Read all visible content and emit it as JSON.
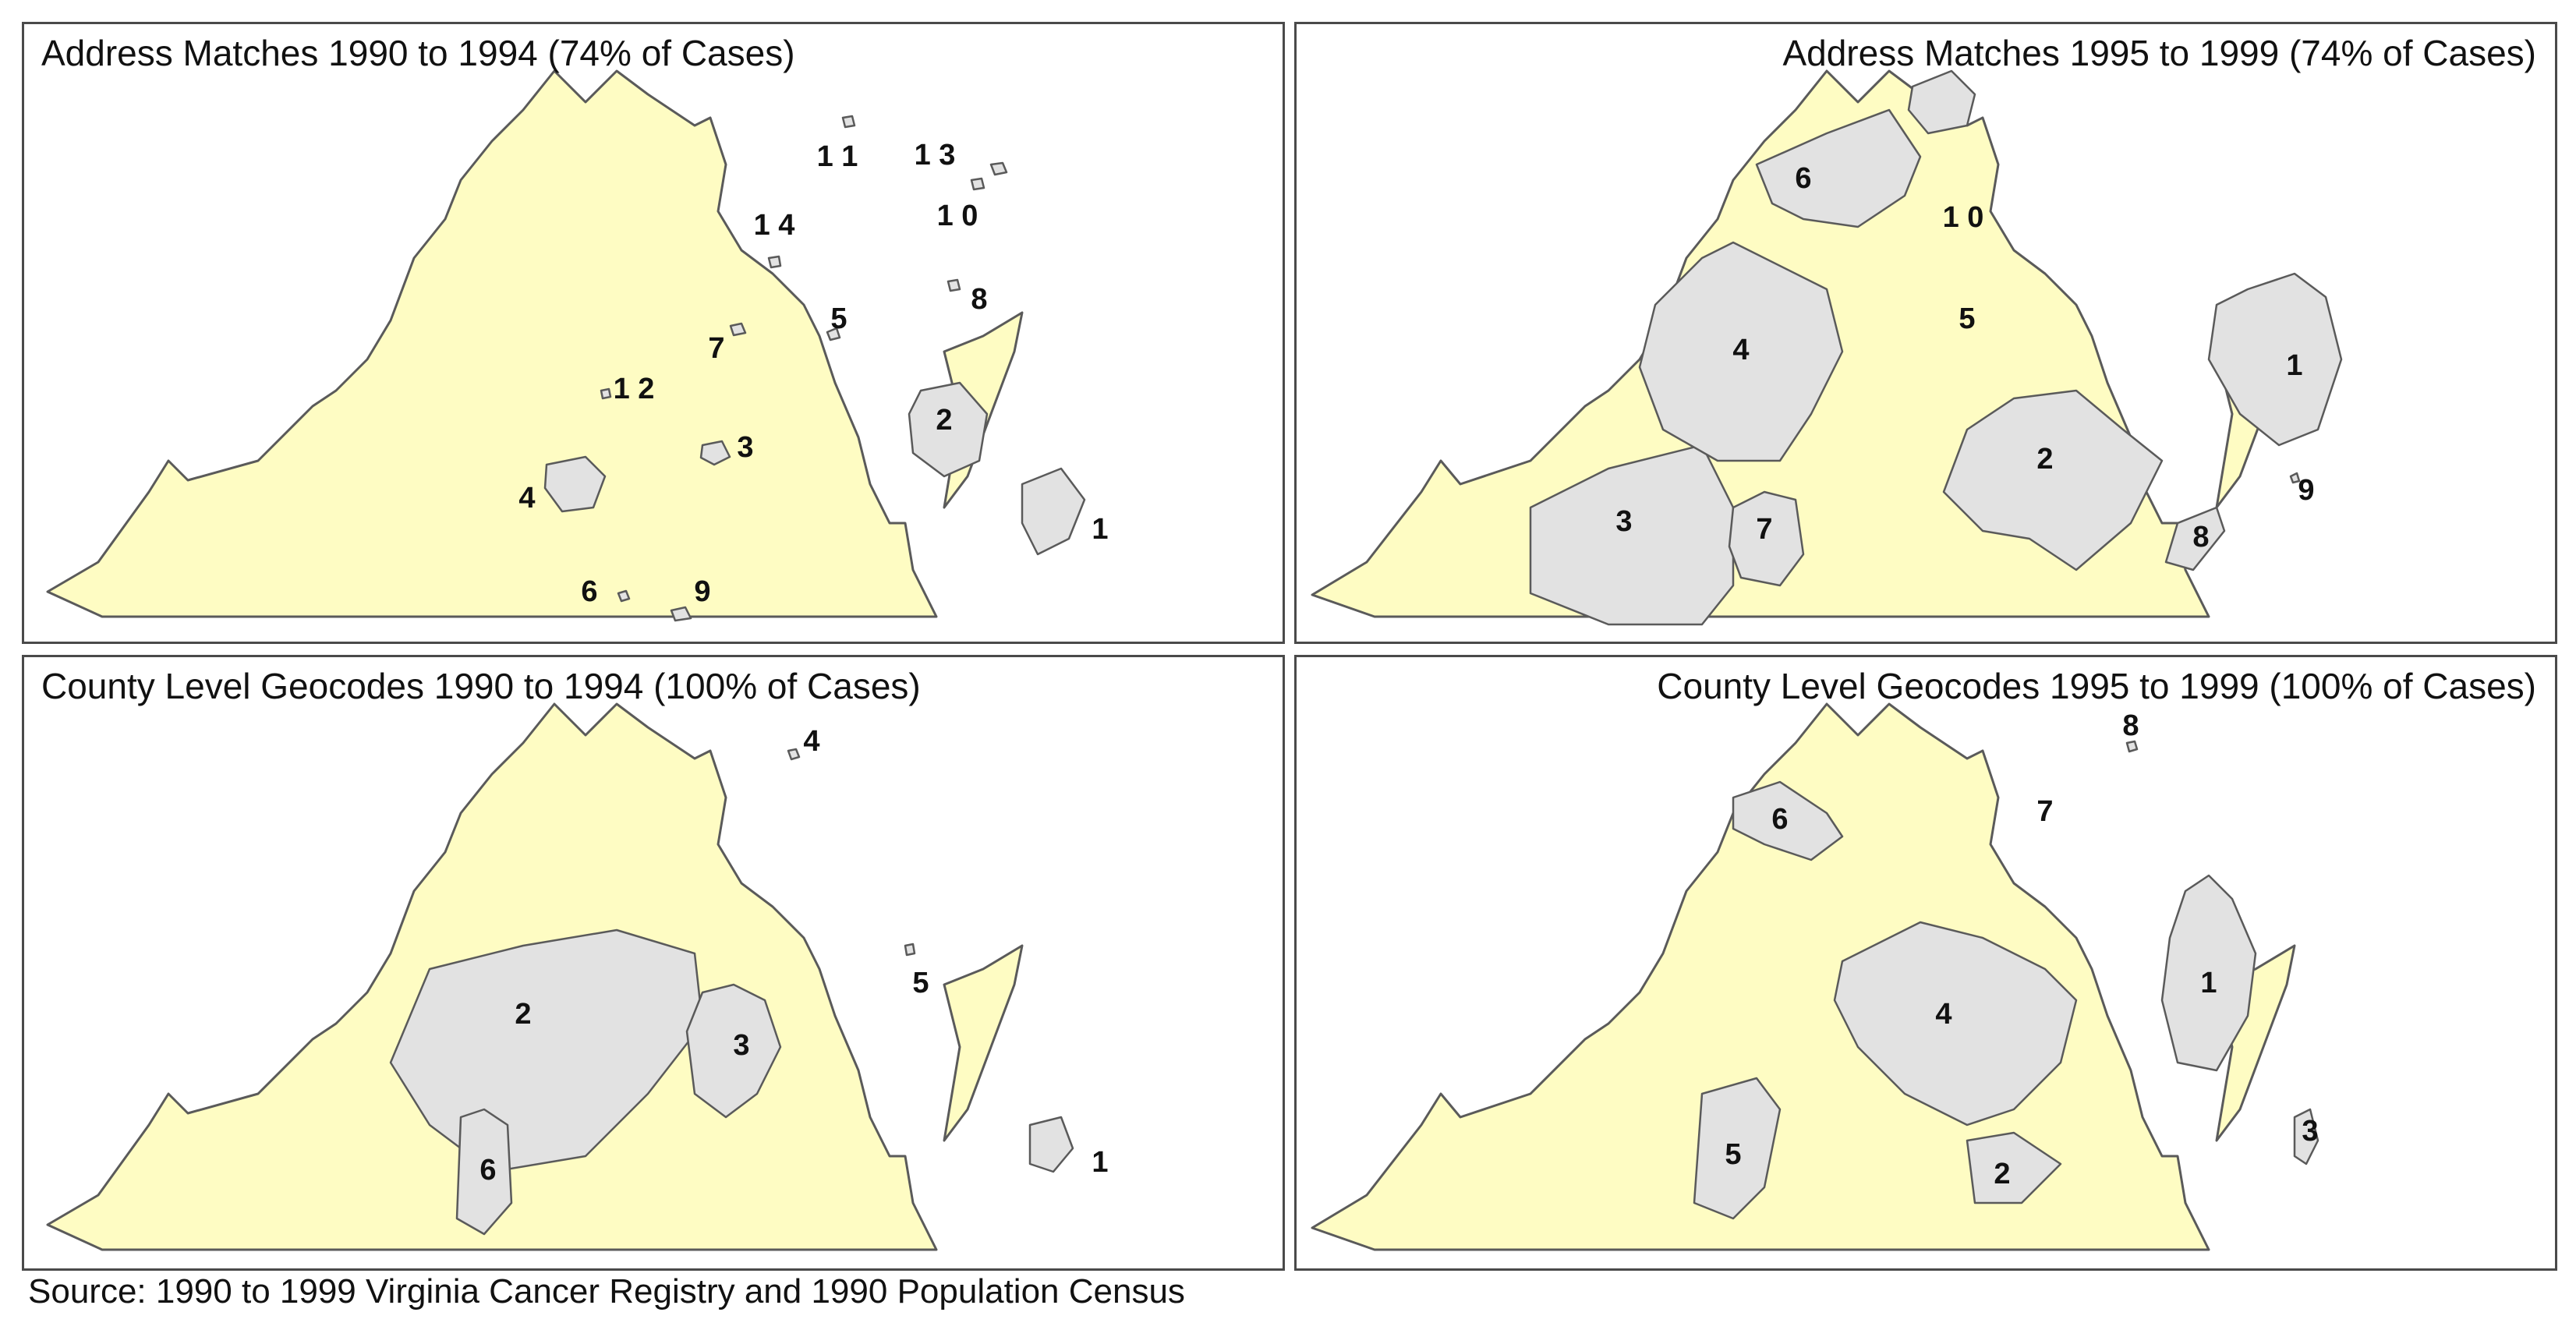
{
  "panels": [
    {
      "title": "Address Matches 1990 to 1994 (74% of Cases)",
      "title_align": "left",
      "clusters": [
        {
          "id": "1",
          "label": "1",
          "shape": "hampton-roads"
        },
        {
          "id": "2",
          "label": "2",
          "shape": "richmond"
        },
        {
          "id": "3",
          "label": "3",
          "shape": "small-blob"
        },
        {
          "id": "4",
          "label": "4",
          "shape": "medium-blob"
        },
        {
          "id": "5",
          "label": "5",
          "shape": "dot"
        },
        {
          "id": "6",
          "label": "6",
          "shape": "dot"
        },
        {
          "id": "7",
          "label": "7",
          "shape": "dot"
        },
        {
          "id": "8",
          "label": "8",
          "shape": "dot"
        },
        {
          "id": "9",
          "label": "9",
          "shape": "dot"
        },
        {
          "id": "10",
          "label": "1 0",
          "shape": "dot"
        },
        {
          "id": "11",
          "label": "1 1",
          "shape": "dot"
        },
        {
          "id": "12",
          "label": "1 2",
          "shape": "dot"
        },
        {
          "id": "13",
          "label": "1 3",
          "shape": "dot"
        },
        {
          "id": "14",
          "label": "1 4",
          "shape": "dot"
        }
      ]
    },
    {
      "title": "Address Matches 1995 to 1999 (74% of Cases)",
      "title_align": "right",
      "clusters": [
        {
          "id": "1",
          "label": "1"
        },
        {
          "id": "2",
          "label": "2"
        },
        {
          "id": "3",
          "label": "3"
        },
        {
          "id": "4",
          "label": "4"
        },
        {
          "id": "5",
          "label": "5"
        },
        {
          "id": "6",
          "label": "6"
        },
        {
          "id": "7",
          "label": "7"
        },
        {
          "id": "8",
          "label": "8"
        },
        {
          "id": "9",
          "label": "9"
        },
        {
          "id": "10",
          "label": "1 0"
        }
      ]
    },
    {
      "title": "County Level Geocodes 1990 to 1994 (100% of Cases)",
      "title_align": "left",
      "clusters": [
        {
          "id": "1",
          "label": "1"
        },
        {
          "id": "2",
          "label": "2"
        },
        {
          "id": "3",
          "label": "3"
        },
        {
          "id": "4",
          "label": "4"
        },
        {
          "id": "5",
          "label": "5"
        },
        {
          "id": "6",
          "label": "6"
        }
      ]
    },
    {
      "title": "County Level Geocodes 1995 to 1999 (100% of Cases)",
      "title_align": "right",
      "clusters": [
        {
          "id": "1",
          "label": "1"
        },
        {
          "id": "2",
          "label": "2"
        },
        {
          "id": "3",
          "label": "3"
        },
        {
          "id": "4",
          "label": "4"
        },
        {
          "id": "5",
          "label": "5"
        },
        {
          "id": "6",
          "label": "6"
        },
        {
          "id": "7",
          "label": "7"
        },
        {
          "id": "8",
          "label": "8"
        }
      ]
    }
  ],
  "colors": {
    "state_fill": "#fefcc3",
    "cluster_fill": "#e2e2e2",
    "outline": "#5a5a5a"
  },
  "source": "Source: 1990 to 1999 Virginia Cancer Registry and 1990 Population Census"
}
